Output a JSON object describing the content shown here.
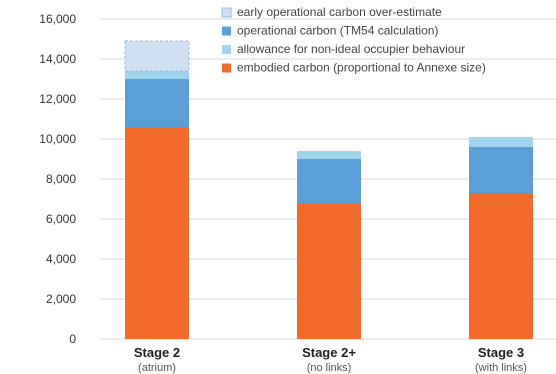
{
  "chart_data": {
    "type": "bar",
    "stacked": true,
    "categories": [
      "Stage 2",
      "Stage 2+",
      "Stage 3"
    ],
    "category_subtitles": [
      "(atrium)",
      "(no links)",
      "(with links)"
    ],
    "ylim": [
      0,
      16000
    ],
    "yticks": [
      0,
      2000,
      4000,
      6000,
      8000,
      10000,
      12000,
      14000,
      16000
    ],
    "ytick_labels": [
      "0",
      "2,000",
      "4,000",
      "6,000",
      "8,000",
      "10,000",
      "12,000",
      "14,000",
      "16,000"
    ],
    "grid": true,
    "legend_position": "top-right",
    "series": [
      {
        "name": "embodied carbon (proportional to Annexe size)",
        "values": [
          10600,
          6800,
          7300
        ],
        "color": "#f26b2b"
      },
      {
        "name": "operational carbon (TM54 calculation)",
        "values": [
          2400,
          2200,
          2300
        ],
        "color": "#5b9fd8"
      },
      {
        "name": "allowance for non-ideal occupier behaviour",
        "values": [
          400,
          400,
          500
        ],
        "color": "#9ed4ef"
      },
      {
        "name": "early operational carbon over-estimate",
        "values": [
          1500,
          0,
          0
        ],
        "color": "#cfe0f3"
      }
    ],
    "legend_order": [
      3,
      1,
      2,
      0
    ]
  }
}
